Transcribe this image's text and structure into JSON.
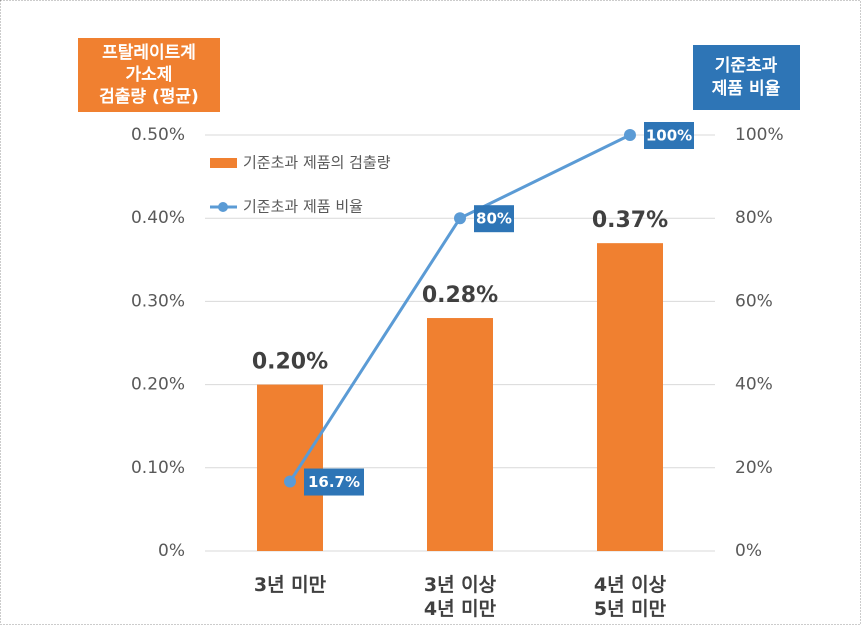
{
  "chart_data": {
    "type": "bar",
    "y_label": [
      "프탈레이트계",
      "가소제",
      "검출량 (평균)"
    ],
    "y2_label": [
      "기준초과",
      "제품 비율"
    ],
    "categories": [
      "3년 미만",
      "3년 이상\n4년 미만",
      "4년 이상\n5년 미만"
    ],
    "series": [
      {
        "name": "기준초과 제품의 검출량",
        "type": "bar",
        "color": "#f08030",
        "values": [
          0.2,
          0.28,
          0.37
        ],
        "value_labels": [
          "0.20%",
          "0.28%",
          "0.37%"
        ]
      },
      {
        "name": "기준초과 제품 비율",
        "type": "line",
        "axis": "y2",
        "color": "#5b9bd5",
        "values": [
          16.7,
          80,
          100
        ],
        "value_labels": [
          "16.7%",
          "80%",
          "100%"
        ]
      }
    ],
    "ylim": [
      0,
      0.5
    ],
    "yticks": [
      {
        "value": 0,
        "label": "0%"
      },
      {
        "value": 0.1,
        "label": "0.10%"
      },
      {
        "value": 0.2,
        "label": "0.20%"
      },
      {
        "value": 0.3,
        "label": "0.30%"
      },
      {
        "value": 0.4,
        "label": "0.40%"
      },
      {
        "value": 0.5,
        "label": "0.50%"
      }
    ],
    "y2lim": [
      0,
      100
    ],
    "y2ticks": [
      {
        "value": 0,
        "label": "0%"
      },
      {
        "value": 20,
        "label": "20%"
      },
      {
        "value": 40,
        "label": "40%"
      },
      {
        "value": 60,
        "label": "60%"
      },
      {
        "value": 80,
        "label": "80%"
      },
      {
        "value": 100,
        "label": "100%"
      }
    ],
    "grid": true,
    "legend": "upper left"
  }
}
